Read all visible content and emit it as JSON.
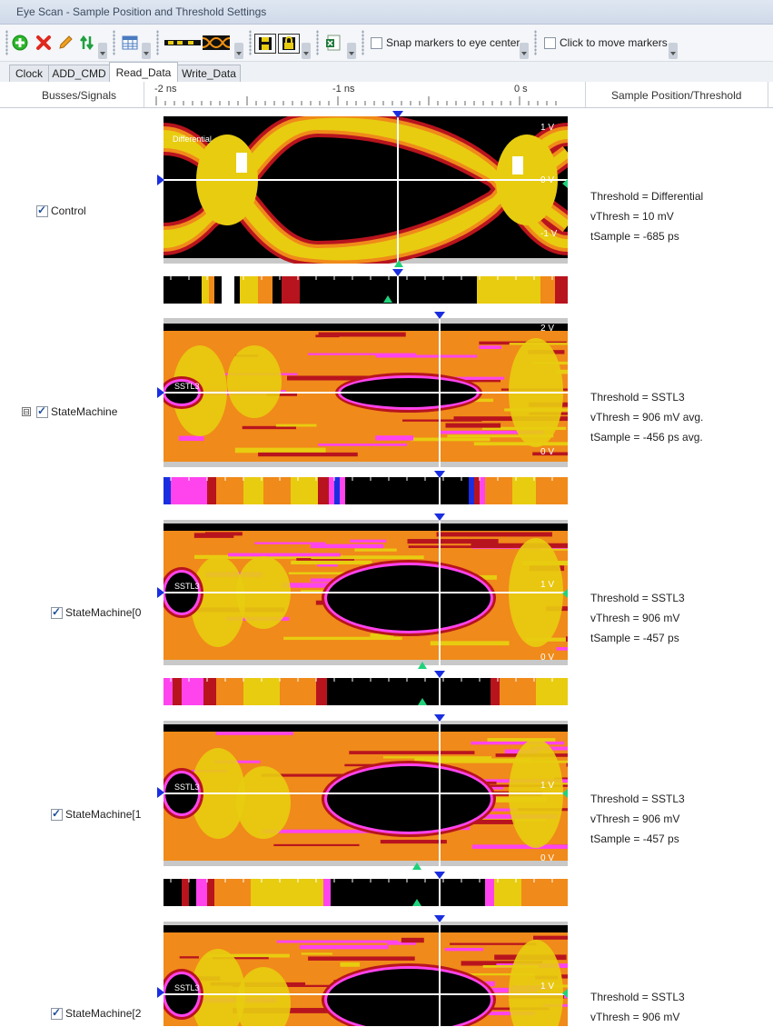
{
  "window": {
    "title": "Eye Scan - Sample Position and Threshold Settings"
  },
  "toolbar": {
    "icons": [
      "add-icon",
      "delete-icon",
      "edit-icon",
      "sort-icon",
      "table-icon",
      "signal-bus-icon",
      "eye-pattern-icon",
      "save-icon",
      "lock-save-icon",
      "export-excel-icon"
    ],
    "snap_label": "Snap markers to eye center",
    "click_label": "Click to move markers",
    "snap_checked": false,
    "click_checked": false
  },
  "tabs": [
    {
      "label": "Clock"
    },
    {
      "label": "ADD_CMD"
    },
    {
      "label": "Read_Data"
    },
    {
      "label": "Write_Data"
    }
  ],
  "active_tab": "Read_Data",
  "header": {
    "col1": "Busses/Signals",
    "col3": "Sample Position/Threshold",
    "ticks": [
      "-2 ns",
      "-1 ns",
      "0 s"
    ]
  },
  "colors": {
    "black": "#000000",
    "darkred": "#b8141e",
    "orange": "#f08a1a",
    "yellow": "#e8cc10",
    "magenta": "#ff44ee",
    "blue": "#1a2ee0",
    "gray": "#c8c8c8",
    "white": "#ffffff"
  },
  "signals": [
    {
      "name": "Control",
      "checked": true,
      "expandable": false,
      "std_label": "Differential",
      "v_labels": [
        "1 V",
        "0 V",
        "-1 V"
      ],
      "info": [
        "Threshold = Differential",
        "vThresh = 10 mV",
        "tSample = -685 ps"
      ]
    },
    {
      "name": "StateMachine",
      "checked": true,
      "expandable": true,
      "expand_symbol": "⊟",
      "std_label": "SSTL3",
      "v_labels": [
        "2 V",
        "0 V"
      ],
      "info": [
        "Threshold = SSTL3",
        "vThresh = 906 mV   avg.",
        "tSample = -456 ps   avg."
      ]
    },
    {
      "name": "StateMachine[0",
      "checked": true,
      "expandable": false,
      "std_label": "SSTL3",
      "v_labels": [
        "1 V",
        "0 V"
      ],
      "info": [
        "Threshold = SSTL3",
        "vThresh = 906 mV",
        "tSample = -457 ps"
      ]
    },
    {
      "name": "StateMachine[1",
      "checked": true,
      "expandable": false,
      "std_label": "SSTL3",
      "v_labels": [
        "1 V",
        "0 V"
      ],
      "info": [
        "Threshold = SSTL3",
        "vThresh = 906 mV",
        "tSample = -457 ps"
      ]
    },
    {
      "name": "StateMachine[2",
      "checked": true,
      "expandable": false,
      "std_label": "SSTL3",
      "v_labels": [
        "1 V"
      ],
      "info": [
        "Threshold = SSTL3",
        "vThresh = 906 mV"
      ]
    }
  ]
}
